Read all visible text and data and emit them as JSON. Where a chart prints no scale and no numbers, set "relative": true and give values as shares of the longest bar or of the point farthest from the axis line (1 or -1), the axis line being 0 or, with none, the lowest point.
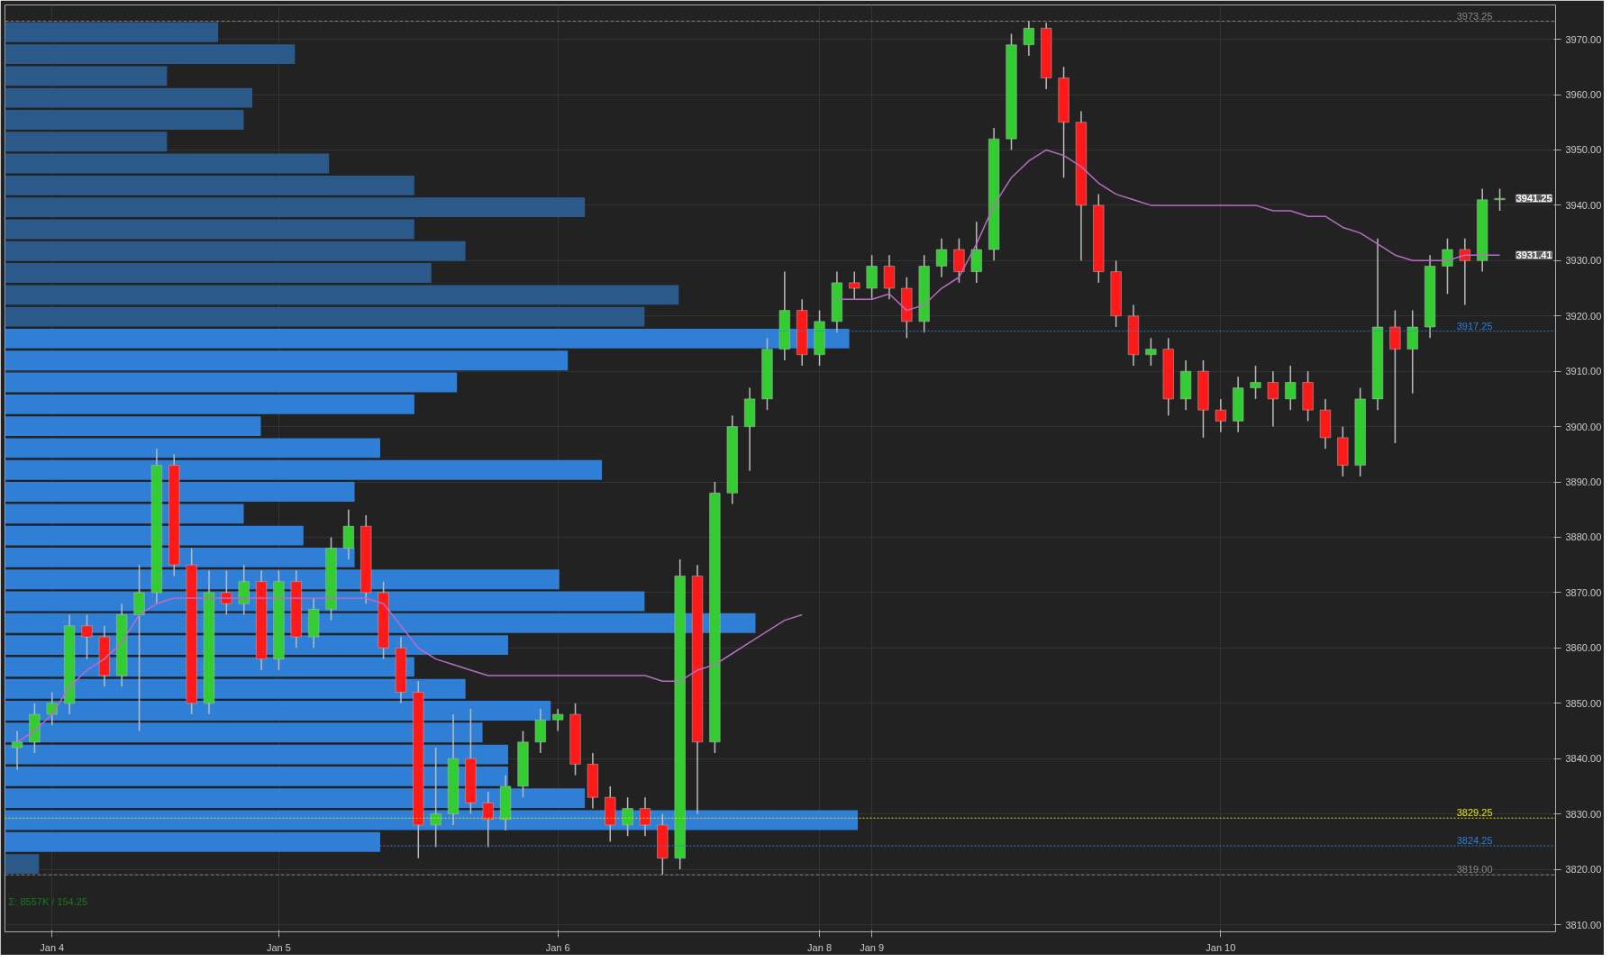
{
  "chart_data": [
    {
      "type": "candlestick",
      "categories": [
        null,
        null,
        "Jan 4",
        null,
        null,
        null,
        null,
        null,
        null,
        null,
        null,
        null,
        null,
        null,
        null,
        "Jan 5",
        null,
        null,
        null,
        null,
        null,
        null,
        null,
        null,
        null,
        null,
        null,
        null,
        null,
        null,
        null,
        "Jan 6",
        null,
        null,
        null,
        null,
        null,
        null,
        null,
        null,
        null,
        null,
        null,
        null,
        null,
        null,
        "Jan 8",
        null,
        null,
        "Jan 9",
        null,
        null,
        null,
        null,
        null,
        null,
        null,
        null,
        null,
        null,
        null,
        null,
        null,
        null,
        null,
        null,
        null,
        null,
        null,
        "Jan 10",
        null,
        null,
        null,
        null,
        null,
        null,
        null,
        null,
        null,
        null,
        null,
        null,
        null,
        null,
        null,
        null
      ],
      "ohlc": [
        [
          3842,
          3845,
          3838,
          3843
        ],
        [
          3843,
          3850,
          3841,
          3848
        ],
        [
          3848,
          3852,
          3846,
          3850
        ],
        [
          3850,
          3866,
          3848,
          3864
        ],
        [
          3864,
          3866,
          3858,
          3862
        ],
        [
          3862,
          3864,
          3853,
          3855
        ],
        [
          3855,
          3868,
          3853,
          3866
        ],
        [
          3866,
          3875,
          3845,
          3870
        ],
        [
          3870,
          3896,
          3868,
          3893
        ],
        [
          3893,
          3895,
          3873,
          3875
        ],
        [
          3875,
          3878,
          3848,
          3850
        ],
        [
          3850,
          3874,
          3848,
          3870
        ],
        [
          3870,
          3874,
          3866,
          3868
        ],
        [
          3868,
          3875,
          3866,
          3872
        ],
        [
          3872,
          3874,
          3856,
          3858
        ],
        [
          3858,
          3874,
          3856,
          3872
        ],
        [
          3872,
          3874,
          3860,
          3862
        ],
        [
          3862,
          3869,
          3860,
          3867
        ],
        [
          3867,
          3880,
          3865,
          3878
        ],
        [
          3878,
          3885,
          3876,
          3882
        ],
        [
          3882,
          3884,
          3868,
          3870
        ],
        [
          3870,
          3872,
          3858,
          3860
        ],
        [
          3860,
          3862,
          3850,
          3852
        ],
        [
          3852,
          3854,
          3822,
          3828
        ],
        [
          3828,
          3842,
          3824,
          3830
        ],
        [
          3830,
          3848,
          3828,
          3840
        ],
        [
          3840,
          3849,
          3830,
          3832
        ],
        [
          3832,
          3834,
          3824,
          3829
        ],
        [
          3829,
          3837,
          3827,
          3835
        ],
        [
          3835,
          3845,
          3833,
          3843
        ],
        [
          3843,
          3849,
          3841,
          3847
        ],
        [
          3847,
          3849,
          3845,
          3848
        ],
        [
          3848,
          3850,
          3837,
          3839
        ],
        [
          3839,
          3841,
          3831,
          3833
        ],
        [
          3833,
          3835,
          3825,
          3828
        ],
        [
          3828,
          3833,
          3826,
          3831
        ],
        [
          3831,
          3833,
          3826,
          3828
        ],
        [
          3828,
          3830,
          3819,
          3822
        ],
        [
          3822,
          3876,
          3820,
          3873
        ],
        [
          3873,
          3875,
          3830,
          3843
        ],
        [
          3843,
          3890,
          3841,
          3888
        ],
        [
          3888,
          3902,
          3886,
          3900
        ],
        [
          3900,
          3907,
          3892,
          3905
        ],
        [
          3905,
          3916,
          3903,
          3914
        ],
        [
          3914,
          3928,
          3912,
          3921
        ],
        [
          3921,
          3923,
          3911,
          3913
        ],
        [
          3913,
          3921,
          3911,
          3919
        ],
        [
          3919,
          3928,
          3917,
          3926
        ],
        [
          3926,
          3928,
          3923,
          3925
        ],
        [
          3925,
          3931,
          3923,
          3929
        ],
        [
          3929,
          3931,
          3923,
          3925
        ],
        [
          3925,
          3927,
          3916,
          3919
        ],
        [
          3919,
          3931,
          3917,
          3929
        ],
        [
          3929,
          3934,
          3927,
          3932
        ],
        [
          3932,
          3934,
          3926,
          3928
        ],
        [
          3928,
          3937,
          3926,
          3932
        ],
        [
          3932,
          3954,
          3930,
          3952
        ],
        [
          3952,
          3971,
          3950,
          3969
        ],
        [
          3969,
          3973.25,
          3967,
          3972
        ],
        [
          3972,
          3973,
          3961,
          3963
        ],
        [
          3963,
          3965,
          3945,
          3955
        ],
        [
          3955,
          3957,
          3930,
          3940
        ],
        [
          3940,
          3942,
          3926,
          3928
        ],
        [
          3928,
          3930,
          3918,
          3920
        ],
        [
          3920,
          3922,
          3911,
          3913
        ],
        [
          3913,
          3916,
          3911,
          3914
        ],
        [
          3914,
          3916,
          3902,
          3905
        ],
        [
          3905,
          3912,
          3903,
          3910
        ],
        [
          3910,
          3912,
          3898,
          3903
        ],
        [
          3903,
          3905,
          3899,
          3901
        ],
        [
          3901,
          3909,
          3899,
          3907
        ],
        [
          3907,
          3911,
          3905,
          3908
        ],
        [
          3908,
          3910,
          3900,
          3905
        ],
        [
          3905,
          3911,
          3903,
          3908
        ],
        [
          3908,
          3910,
          3901,
          3903
        ],
        [
          3903,
          3905,
          3896,
          3898
        ],
        [
          3898,
          3900,
          3891,
          3893
        ],
        [
          3893,
          3907,
          3891,
          3905
        ],
        [
          3905,
          3934,
          3903,
          3918
        ],
        [
          3918,
          3921,
          3897,
          3914
        ],
        [
          3914,
          3921,
          3906,
          3918
        ],
        [
          3918,
          3931,
          3916,
          3929
        ],
        [
          3929,
          3934,
          3924,
          3932
        ],
        [
          3932,
          3934,
          3922,
          3930
        ],
        [
          3930,
          3943,
          3928,
          3941
        ],
        [
          3941,
          3943,
          3939,
          3941.25
        ]
      ],
      "colors": [
        "#33cc33",
        "#33cc33",
        "#33cc33",
        "#33cc33",
        "#ff1a1a",
        "#ff1a1a",
        "#33cc33",
        "#33cc33",
        "#33cc33",
        "#ff1a1a",
        "#ff1a1a",
        "#33cc33",
        "#ff1a1a",
        "#33cc33",
        "#ff1a1a",
        "#33cc33",
        "#ff1a1a",
        "#33cc33",
        "#33cc33",
        "#33cc33",
        "#ff1a1a",
        "#ff1a1a",
        "#ff1a1a",
        "#ff1a1a",
        "#33cc33",
        "#33cc33",
        "#ff1a1a",
        "#ff1a1a",
        "#33cc33",
        "#33cc33",
        "#33cc33",
        "#33cc33",
        "#ff1a1a",
        "#ff1a1a",
        "#ff1a1a",
        "#33cc33",
        "#ff1a1a",
        "#ff1a1a",
        "#33cc33",
        "#ff1a1a",
        "#33cc33",
        "#33cc33",
        "#33cc33",
        "#33cc33",
        "#33cc33",
        "#ff1a1a",
        "#33cc33",
        "#33cc33",
        "#ff1a1a",
        "#33cc33",
        "#ff1a1a",
        "#ff1a1a",
        "#33cc33",
        "#33cc33",
        "#ff1a1a",
        "#33cc33",
        "#33cc33",
        "#33cc33",
        "#33cc33",
        "#ff1a1a",
        "#ff1a1a",
        "#ff1a1a",
        "#ff1a1a",
        "#ff1a1a",
        "#ff1a1a",
        "#33cc33",
        "#ff1a1a",
        "#33cc33",
        "#ff1a1a",
        "#ff1a1a",
        "#33cc33",
        "#33cc33",
        "#ff1a1a",
        "#33cc33",
        "#ff1a1a",
        "#ff1a1a",
        "#ff1a1a",
        "#33cc33",
        "#33cc33",
        "#ff1a1a",
        "#33cc33",
        "#33cc33",
        "#33cc33",
        "#ff1a1a",
        "#33cc33",
        "#33cc33"
      ],
      "series": [
        {
          "type": "line",
          "color": "#b86cc4",
          "values": [
            3843,
            3845,
            3848,
            3853,
            3856,
            3858,
            3861,
            3866,
            3868,
            3869,
            3869,
            3869,
            3869,
            3869,
            3869,
            3869,
            3869,
            3869,
            3869,
            3869,
            3869,
            3868,
            3864,
            3860,
            3858,
            3857,
            3856,
            3855,
            3855,
            3855,
            3855,
            3855,
            3855,
            3855,
            3855,
            3855,
            3855,
            3854,
            3854,
            3856,
            3857,
            3859,
            3861,
            3863,
            3865,
            3866,
            null,
            3923,
            3923,
            3923,
            3924,
            3921,
            3922,
            3925,
            3927,
            3933,
            3940,
            3945,
            3948,
            3950,
            3949,
            3947,
            3944,
            3942,
            3941,
            3940,
            3940,
            3940,
            3940,
            3940,
            3940,
            3940,
            3939,
            3939,
            3938,
            3938,
            3936,
            3935,
            3933,
            3931,
            3930,
            3930,
            3930,
            3931,
            3931,
            3931
          ]
        }
      ],
      "ylim": [
        3808.7,
        3976.2
      ],
      "yticks": [
        {
          "value": 3810,
          "label": "3810.00"
        },
        {
          "value": 3820,
          "label": "3820.00"
        },
        {
          "value": 3830,
          "label": "3830.00"
        },
        {
          "value": 3840,
          "label": "3840.00"
        },
        {
          "value": 3850,
          "label": "3850.00"
        },
        {
          "value": 3860,
          "label": "3860.00"
        },
        {
          "value": 3870,
          "label": "3870.00"
        },
        {
          "value": 3880,
          "label": "3880.00"
        },
        {
          "value": 3890,
          "label": "3890.00"
        },
        {
          "value": 3900,
          "label": "3900.00"
        },
        {
          "value": 3910,
          "label": "3910.00"
        },
        {
          "value": 3920,
          "label": "3920.00"
        },
        {
          "value": 3930,
          "label": "3930.00"
        },
        {
          "value": 3940,
          "label": "3940.00"
        },
        {
          "value": 3950,
          "label": "3950.00"
        },
        {
          "value": 3960,
          "label": "3960.00"
        },
        {
          "value": 3970,
          "label": "3970.00"
        }
      ],
      "ref_lines": [
        {
          "axis": "y",
          "value": 3973.25,
          "label": "3973.25",
          "color": "#888888",
          "line_style": "dashed"
        },
        {
          "axis": "y",
          "value": 3917.25,
          "label": "3917.25",
          "color": "#2f7fd6",
          "line_style": "dotted"
        },
        {
          "axis": "y",
          "value": 3829.25,
          "label": "3829.25",
          "color": "#e6e600",
          "line_style": "dotted"
        },
        {
          "axis": "y",
          "value": 3824.25,
          "label": "3824.25",
          "color": "#2f7fd6",
          "line_style": "dotted"
        },
        {
          "axis": "y",
          "value": 3819.0,
          "label": "3819.00",
          "color": "#888888",
          "line_style": "dashed"
        }
      ],
      "annotations": [
        "Σ: 8557K / 154.25",
        "3941.25",
        "3931.41"
      ],
      "grid": true
    },
    {
      "type": "bar",
      "orientation": "horizontal",
      "relative": true,
      "categories": [
        null,
        null,
        null,
        null,
        null,
        null,
        null,
        null,
        null,
        null,
        null,
        null,
        null,
        null,
        null,
        null,
        null,
        null,
        null,
        null,
        null,
        null,
        null,
        null,
        null,
        null,
        null,
        null,
        null,
        null,
        null,
        null,
        null,
        null,
        null,
        null,
        null,
        null,
        null
      ],
      "values": [
        0.25,
        0.34,
        0.19,
        0.29,
        0.28,
        0.19,
        0.38,
        0.48,
        0.68,
        0.48,
        0.54,
        0.5,
        0.79,
        0.75,
        0.99,
        0.66,
        0.53,
        0.48,
        0.3,
        0.44,
        0.7,
        0.41,
        0.28,
        0.35,
        0.41,
        0.65,
        0.75,
        0.88,
        0.59,
        0.48,
        0.54,
        0.64,
        0.56,
        0.59,
        0.59,
        0.68,
        1,
        0.44,
        0.04
      ],
      "colors": [
        "#2b5a8a",
        "#2b5a8a",
        "#2b5a8a",
        "#2b5a8a",
        "#2b5a8a",
        "#2b5a8a",
        "#2b5a8a",
        "#2b5a8a",
        "#2b5a8a",
        "#2b5a8a",
        "#2b5a8a",
        "#2b5a8a",
        "#2b5a8a",
        "#2b5a8a",
        "#2f7fd6",
        "#2f7fd6",
        "#2f7fd6",
        "#2f7fd6",
        "#2f7fd6",
        "#2f7fd6",
        "#2f7fd6",
        "#2f7fd6",
        "#2f7fd6",
        "#2f7fd6",
        "#2f7fd6",
        "#2f7fd6",
        "#2f7fd6",
        "#2f7fd6",
        "#2f7fd6",
        "#2f7fd6",
        "#2f7fd6",
        "#2f7fd6",
        "#2f7fd6",
        "#2f7fd6",
        "#2f7fd6",
        "#2f7fd6",
        "#2f7fd6",
        "#2f7fd6",
        "#2b5a8a"
      ]
    }
  ]
}
